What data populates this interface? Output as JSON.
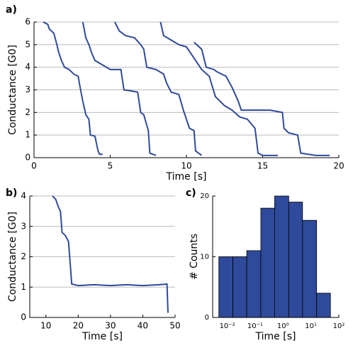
{
  "chart_data": [
    {
      "type": "line",
      "panel_label": "a)",
      "xlabel": "Time [s]",
      "ylabel": "Conductance [G0]",
      "xlim": [
        0,
        20
      ],
      "xticks": [
        0,
        5,
        10,
        15,
        20
      ],
      "ylim": [
        0,
        6
      ],
      "yticks": [
        0,
        1,
        2,
        3,
        4,
        5,
        6
      ],
      "grid": true,
      "series": [
        {
          "color": "#2f4a9a",
          "x": [
            0.6,
            0.9,
            1.0,
            1.3,
            1.5,
            1.6,
            1.8,
            2.0,
            2.3,
            2.6,
            2.9,
            3.0,
            3.2,
            3.4,
            3.6,
            3.7,
            4.0,
            4.2,
            4.3,
            4.5
          ],
          "values": [
            6,
            5.9,
            5.7,
            5.5,
            5.0,
            4.7,
            4.3,
            4.0,
            3.9,
            3.7,
            3.6,
            3.2,
            2.5,
            1.9,
            1.7,
            1.0,
            0.95,
            0.3,
            0.15,
            0.15
          ]
        },
        {
          "color": "#2f4a9a",
          "x": [
            3.2,
            3.4,
            3.6,
            3.8,
            4.0,
            4.5,
            5.0,
            5.7,
            5.9,
            6.4,
            6.8,
            7.0,
            7.2,
            7.5,
            7.6,
            8.0
          ],
          "values": [
            6,
            5.3,
            5.0,
            4.6,
            4.3,
            4.1,
            3.9,
            3.9,
            3.0,
            2.95,
            2.9,
            2.0,
            1.9,
            1.2,
            0.2,
            0.1
          ]
        },
        {
          "color": "#2f4a9a",
          "x": [
            5.3,
            5.6,
            6.0,
            6.6,
            7.0,
            7.2,
            7.4,
            8.0,
            8.5,
            8.7,
            9.0,
            9.5,
            9.8,
            10.2,
            10.5,
            10.6,
            11.0
          ],
          "values": [
            6,
            5.6,
            5.4,
            5.3,
            5.0,
            4.8,
            4.0,
            3.9,
            3.7,
            3.3,
            2.9,
            2.8,
            2.1,
            1.3,
            1.2,
            0.3,
            0.1
          ]
        },
        {
          "color": "#2f4a9a",
          "x": [
            8.3,
            8.5,
            9.0,
            9.5,
            10.0,
            10.3,
            10.6,
            11.0,
            11.5,
            11.9,
            12.5,
            13.0,
            13.5,
            14.0,
            14.5,
            14.7,
            15.0,
            16.0
          ],
          "values": [
            6,
            5.4,
            5.2,
            5.0,
            4.9,
            4.6,
            4.3,
            3.9,
            3.6,
            2.7,
            2.3,
            2.1,
            1.8,
            1.7,
            1.3,
            0.2,
            0.1,
            0.1
          ]
        },
        {
          "color": "#2f4a9a",
          "x": [
            10.5,
            11.0,
            11.3,
            11.8,
            12.0,
            12.6,
            13.0,
            13.4,
            13.6,
            15.5,
            16.3,
            16.4,
            16.7,
            17.3,
            17.5,
            18.5,
            19.4
          ],
          "values": [
            5.1,
            4.8,
            4.0,
            3.9,
            3.8,
            3.6,
            3.1,
            2.5,
            2.1,
            2.1,
            2.0,
            1.3,
            1.1,
            1.0,
            0.2,
            0.1,
            0.1
          ]
        }
      ]
    },
    {
      "type": "line",
      "panel_label": "b)",
      "xlabel": "Time [s]",
      "ylabel": "Conductance [G0]",
      "xlim": [
        5,
        50
      ],
      "xticks": [
        10,
        20,
        30,
        40,
        50
      ],
      "ylim": [
        0,
        4
      ],
      "yticks": [
        0,
        1,
        2,
        3,
        4
      ],
      "grid": true,
      "series": [
        {
          "color": "#2f4a9a",
          "x": [
            12,
            13,
            14,
            14.5,
            15,
            16,
            17,
            17.5,
            18,
            20,
            25,
            30,
            35,
            40,
            45,
            47.5,
            47.8
          ],
          "values": [
            4,
            3.9,
            3.6,
            3.5,
            2.8,
            2.7,
            2.5,
            1.8,
            1.1,
            1.05,
            1.08,
            1.05,
            1.08,
            1.05,
            1.08,
            1.1,
            0.15
          ]
        }
      ]
    },
    {
      "type": "histogram",
      "panel_label": "c)",
      "xlabel": "Time [s]",
      "ylabel": "# Counts",
      "log_x": true,
      "color": "#2f4a9a",
      "xlim": [
        0.003,
        100
      ],
      "xticks": [
        {
          "value": 0.01,
          "label": "10⁻²"
        },
        {
          "value": 0.1,
          "label": "10⁻¹"
        },
        {
          "value": 1,
          "label": "10⁰"
        },
        {
          "value": 10,
          "label": "10¹"
        },
        {
          "value": 100,
          "label": "10²"
        }
      ],
      "ylim": [
        0,
        20
      ],
      "yticks": [
        0,
        10,
        20
      ],
      "bins": [
        0.005,
        0.016,
        0.05,
        0.16,
        0.5,
        1.6,
        5,
        16,
        50
      ],
      "values": [
        10,
        10,
        11,
        18,
        20,
        19,
        16,
        4
      ]
    }
  ]
}
